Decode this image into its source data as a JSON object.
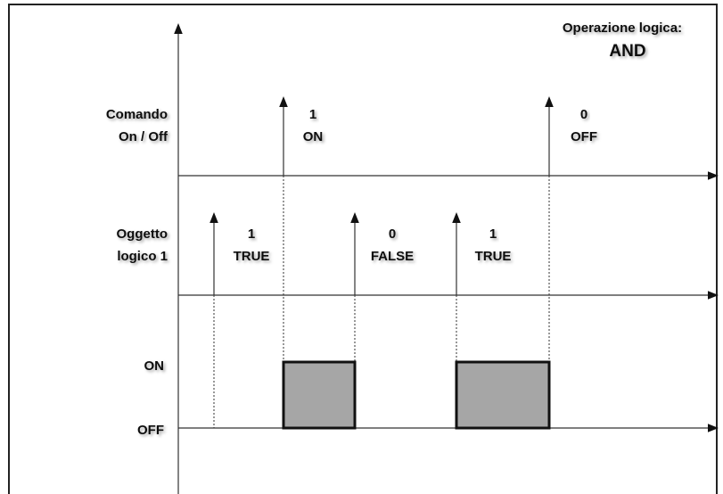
{
  "header": {
    "title": "Operazione logica:",
    "operation": "AND"
  },
  "rows": [
    {
      "label": [
        "Comando",
        "On / Off"
      ]
    },
    {
      "label": [
        "Oggetto",
        "logico 1"
      ]
    },
    {
      "label": [
        "ON",
        "OFF"
      ]
    }
  ],
  "events": [
    {
      "value": "1",
      "state": "ON"
    },
    {
      "value": "0",
      "state": "OFF"
    },
    {
      "value": "1",
      "state": "TRUE"
    },
    {
      "value": "0",
      "state": "FALSE"
    },
    {
      "value": "1",
      "state": "TRUE"
    }
  ]
}
